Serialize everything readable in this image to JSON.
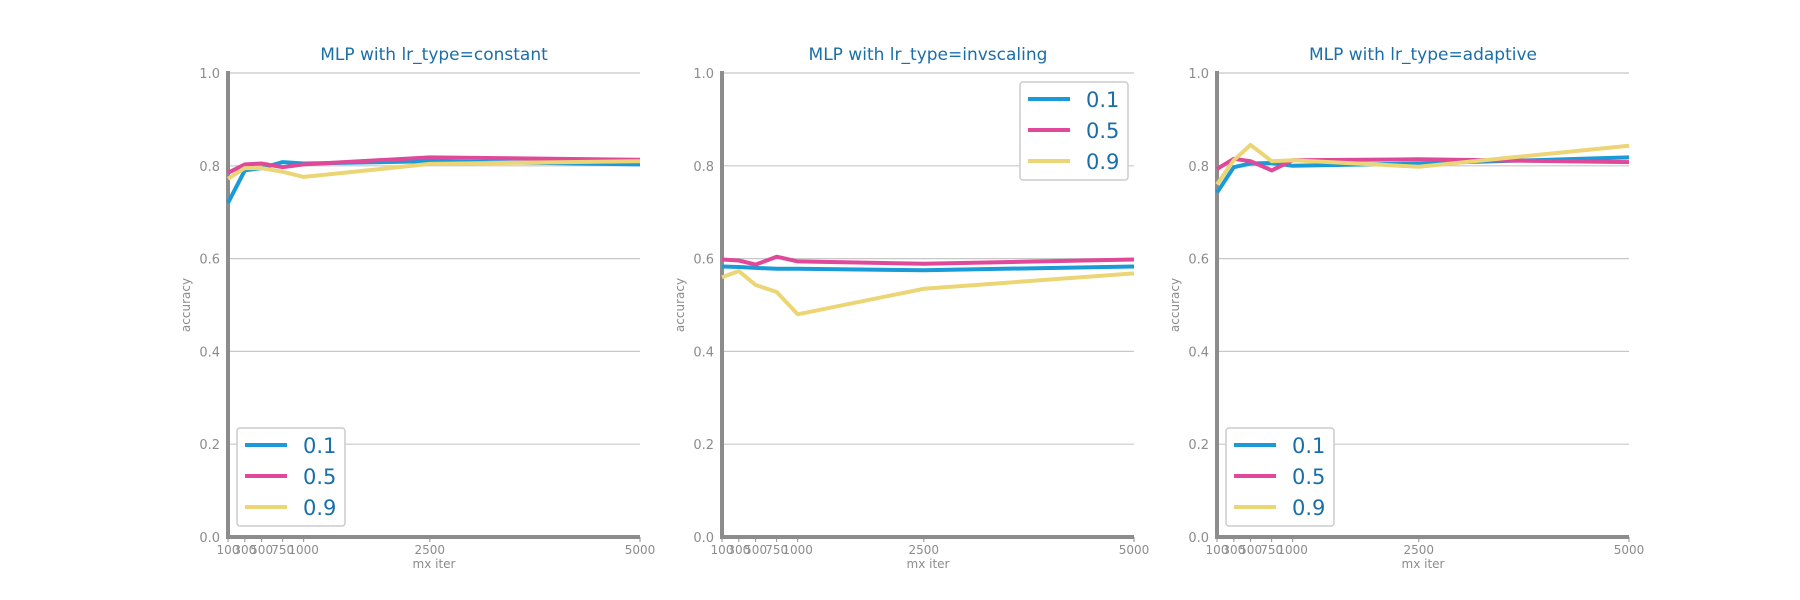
{
  "colors": {
    "title": "#1a6fa8",
    "axis": "#8c8c8c",
    "grid": "#c8c8c8",
    "legend_text": "#1a6fa8",
    "legend_border": "#cccccc"
  },
  "chart_data": [
    {
      "type": "line",
      "title": "MLP with lr_type=constant",
      "xlabel": "mx iter",
      "ylabel": "accuracy",
      "x": [
        100,
        300,
        500,
        750,
        1000,
        2500,
        5000
      ],
      "xticks": [
        "100",
        "300",
        "500",
        "750",
        "1000",
        "2500",
        "5000"
      ],
      "yticks": [
        "0.0",
        "0.2",
        "0.4",
        "0.6",
        "0.8",
        "1.0"
      ],
      "ylim": [
        0,
        1
      ],
      "grid": "horizontal",
      "legend_position": "lower-left",
      "series": [
        {
          "name": "0.1",
          "color": "#1a9ad6",
          "values": [
            0.72,
            0.79,
            0.795,
            0.808,
            0.805,
            0.81,
            0.803
          ]
        },
        {
          "name": "0.5",
          "color": "#e0489a",
          "values": [
            0.785,
            0.803,
            0.805,
            0.797,
            0.803,
            0.818,
            0.813
          ]
        },
        {
          "name": "0.9",
          "color": "#ebd575",
          "values": [
            0.772,
            0.795,
            0.795,
            0.787,
            0.776,
            0.804,
            0.81
          ]
        }
      ]
    },
    {
      "type": "line",
      "title": "MLP with lr_type=invscaling",
      "xlabel": "mx iter",
      "ylabel": "accuracy",
      "x": [
        100,
        300,
        500,
        750,
        1000,
        2500,
        5000
      ],
      "xticks": [
        "100",
        "300",
        "500",
        "750",
        "1000",
        "2500",
        "5000"
      ],
      "yticks": [
        "0.0",
        "0.2",
        "0.4",
        "0.6",
        "0.8",
        "1.0"
      ],
      "ylim": [
        0,
        1
      ],
      "grid": "horizontal",
      "legend_position": "upper-right",
      "series": [
        {
          "name": "0.1",
          "color": "#1a9ad6",
          "values": [
            0.583,
            0.582,
            0.58,
            0.578,
            0.578,
            0.575,
            0.583
          ]
        },
        {
          "name": "0.5",
          "color": "#e0489a",
          "values": [
            0.598,
            0.596,
            0.587,
            0.604,
            0.594,
            0.589,
            0.598
          ]
        },
        {
          "name": "0.9",
          "color": "#ebd575",
          "values": [
            0.56,
            0.573,
            0.543,
            0.528,
            0.48,
            0.535,
            0.568
          ]
        }
      ]
    },
    {
      "type": "line",
      "title": "MLP with lr_type=adaptive",
      "xlabel": "mx iter",
      "ylabel": "accuracy",
      "x": [
        100,
        300,
        500,
        750,
        1000,
        2500,
        5000
      ],
      "xticks": [
        "100",
        "300",
        "500",
        "750",
        "1000",
        "2500",
        "5000"
      ],
      "yticks": [
        "0.0",
        "0.2",
        "0.4",
        "0.6",
        "0.8",
        "1.0"
      ],
      "ylim": [
        0,
        1
      ],
      "grid": "horizontal",
      "legend_position": "lower-left",
      "series": [
        {
          "name": "0.1",
          "color": "#1a9ad6",
          "values": [
            0.742,
            0.797,
            0.805,
            0.806,
            0.8,
            0.805,
            0.818
          ]
        },
        {
          "name": "0.5",
          "color": "#e0489a",
          "values": [
            0.793,
            0.815,
            0.81,
            0.79,
            0.812,
            0.814,
            0.808
          ]
        },
        {
          "name": "0.9",
          "color": "#ebd575",
          "values": [
            0.76,
            0.812,
            0.845,
            0.81,
            0.812,
            0.798,
            0.843
          ]
        }
      ]
    }
  ]
}
